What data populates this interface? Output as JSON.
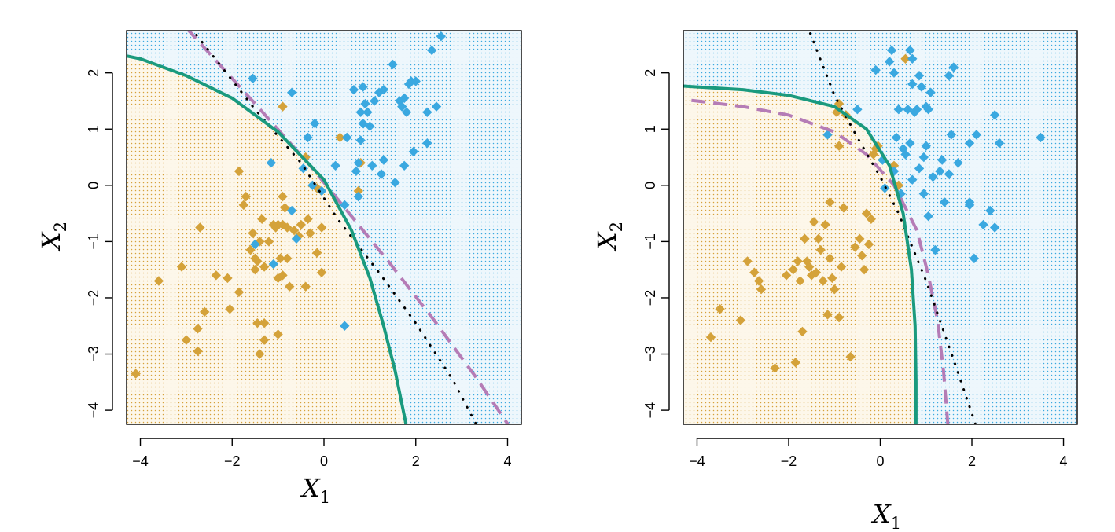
{
  "chart_data": [
    {
      "type": "scatter",
      "panel": "left",
      "xlabel_main": "X",
      "xlabel_sub": "1",
      "ylabel_main": "X",
      "ylabel_sub": "2",
      "xlim": [
        -4.3,
        4.3
      ],
      "ylim": [
        -4.25,
        2.75
      ],
      "x_ticks": [
        "−4",
        "−2",
        "0",
        "2",
        "4"
      ],
      "y_ticks": [
        "−4",
        "−3",
        "−2",
        "−1",
        "0",
        "1",
        "2"
      ],
      "x_tick_values": [
        -4,
        -2,
        0,
        2,
        4
      ],
      "y_tick_values": [
        -4,
        -3,
        -2,
        -1,
        0,
        1,
        2
      ],
      "background_regions": {
        "class1_color": "#e0a81e",
        "class2_color": "#2a9fe0",
        "style": "dotted grid"
      },
      "series": [
        {
          "marker": "diamond",
          "color": "#d4a23a",
          "points": [
            [
              -4.1,
              -3.35
            ],
            [
              -3.6,
              -1.7
            ],
            [
              -3.1,
              -1.45
            ],
            [
              -3.0,
              -2.75
            ],
            [
              -2.75,
              -2.95
            ],
            [
              -2.75,
              -2.55
            ],
            [
              -2.7,
              -0.75
            ],
            [
              -2.6,
              -2.25
            ],
            [
              -2.35,
              -1.6
            ],
            [
              -2.1,
              -1.65
            ],
            [
              -2.05,
              -2.2
            ],
            [
              -1.85,
              -1.9
            ],
            [
              -1.85,
              0.25
            ],
            [
              -1.75,
              -0.35
            ],
            [
              -1.7,
              -0.2
            ],
            [
              -1.6,
              -1.15
            ],
            [
              -1.55,
              -0.85
            ],
            [
              -1.5,
              -1.3
            ],
            [
              -1.5,
              -1.5
            ],
            [
              -1.45,
              -2.45
            ],
            [
              -1.45,
              -1.35
            ],
            [
              -1.4,
              -3.0
            ],
            [
              -1.4,
              -1.0
            ],
            [
              -1.35,
              -0.6
            ],
            [
              -1.3,
              -2.45
            ],
            [
              -1.3,
              -2.75
            ],
            [
              -1.3,
              -1.45
            ],
            [
              -1.2,
              -1.0
            ],
            [
              -1.1,
              -0.7
            ],
            [
              -1.05,
              -0.75
            ],
            [
              -1.0,
              -1.65
            ],
            [
              -1.0,
              -2.65
            ],
            [
              -0.95,
              -1.3
            ],
            [
              -0.9,
              -0.2
            ],
            [
              -0.9,
              -0.7
            ],
            [
              -0.9,
              -1.6
            ],
            [
              -0.85,
              -0.4
            ],
            [
              -0.8,
              -0.75
            ],
            [
              -0.8,
              -1.3
            ],
            [
              -0.65,
              -0.8
            ],
            [
              -0.55,
              -0.9
            ],
            [
              -0.5,
              -0.7
            ],
            [
              -0.4,
              -1.8
            ],
            [
              -0.35,
              -0.6
            ],
            [
              -0.3,
              -0.85
            ],
            [
              -0.15,
              -0.05
            ],
            [
              -0.15,
              -1.2
            ],
            [
              -0.05,
              -0.75
            ],
            [
              -0.05,
              -1.55
            ],
            [
              0.35,
              0.85
            ],
            [
              0.8,
              0.4
            ],
            [
              0.75,
              -0.1
            ],
            [
              -0.4,
              0.5
            ],
            [
              -0.9,
              1.4
            ],
            [
              -0.75,
              -1.8
            ],
            [
              -1.0,
              -0.7
            ]
          ]
        },
        {
          "marker": "diamond",
          "color": "#3aa8e0",
          "points": [
            [
              -1.55,
              1.9
            ],
            [
              -1.15,
              0.4
            ],
            [
              -0.7,
              1.65
            ],
            [
              -0.45,
              0.3
            ],
            [
              -0.35,
              0.85
            ],
            [
              -0.25,
              0.0
            ],
            [
              -0.2,
              1.1
            ],
            [
              -0.05,
              -0.1
            ],
            [
              0.25,
              0.35
            ],
            [
              0.45,
              -0.35
            ],
            [
              0.5,
              0.85
            ],
            [
              0.65,
              1.7
            ],
            [
              0.7,
              0.25
            ],
            [
              0.75,
              0.4
            ],
            [
              0.75,
              -0.2
            ],
            [
              0.8,
              1.3
            ],
            [
              0.8,
              0.8
            ],
            [
              0.85,
              1.75
            ],
            [
              0.85,
              1.1
            ],
            [
              0.9,
              1.45
            ],
            [
              0.95,
              1.3
            ],
            [
              1.0,
              1.05
            ],
            [
              1.05,
              0.35
            ],
            [
              1.1,
              1.5
            ],
            [
              1.2,
              1.65
            ],
            [
              1.25,
              0.2
            ],
            [
              1.3,
              1.7
            ],
            [
              1.3,
              0.45
            ],
            [
              1.5,
              2.15
            ],
            [
              1.55,
              0.05
            ],
            [
              1.65,
              1.5
            ],
            [
              1.7,
              1.4
            ],
            [
              1.75,
              1.55
            ],
            [
              1.75,
              0.35
            ],
            [
              1.8,
              1.3
            ],
            [
              1.85,
              1.8
            ],
            [
              1.9,
              1.85
            ],
            [
              1.95,
              0.6
            ],
            [
              2.0,
              1.85
            ],
            [
              2.25,
              1.3
            ],
            [
              2.25,
              0.75
            ],
            [
              2.35,
              2.4
            ],
            [
              2.45,
              1.4
            ],
            [
              2.55,
              2.65
            ],
            [
              0.45,
              -2.5
            ],
            [
              -1.1,
              -1.4
            ],
            [
              -1.5,
              -1.05
            ],
            [
              -0.6,
              -0.95
            ],
            [
              -0.7,
              -0.45
            ]
          ]
        }
      ],
      "curves": [
        {
          "style": "solid",
          "color": "#1a9a7e"
        },
        {
          "style": "dotted",
          "color": "#000000"
        },
        {
          "style": "dashed",
          "color": "#b57cb6"
        }
      ]
    },
    {
      "type": "scatter",
      "panel": "right",
      "xlabel_main": "X",
      "xlabel_sub": "1",
      "ylabel_main": "X",
      "ylabel_sub": "2",
      "xlim": [
        -4.3,
        4.3
      ],
      "ylim": [
        -4.25,
        2.75
      ],
      "x_ticks": [
        "−4",
        "−2",
        "0",
        "2",
        "4"
      ],
      "y_ticks": [
        "−4",
        "−3",
        "−2",
        "−1",
        "0",
        "1",
        "2"
      ],
      "x_tick_values": [
        -4,
        -2,
        0,
        2,
        4
      ],
      "y_tick_values": [
        -4,
        -3,
        -2,
        -1,
        0,
        1,
        2
      ],
      "background_regions": {
        "class1_color": "#e0a81e",
        "class2_color": "#2a9fe0",
        "style": "dotted grid"
      },
      "series": [
        {
          "marker": "diamond",
          "color": "#d4a23a",
          "points": [
            [
              -3.7,
              -2.7
            ],
            [
              -3.5,
              -2.2
            ],
            [
              -3.05,
              -2.4
            ],
            [
              -2.9,
              -1.35
            ],
            [
              -2.75,
              -1.55
            ],
            [
              -2.65,
              -1.7
            ],
            [
              -2.6,
              -1.85
            ],
            [
              -2.3,
              -3.25
            ],
            [
              -2.05,
              -1.6
            ],
            [
              -1.9,
              -1.5
            ],
            [
              -1.85,
              -3.15
            ],
            [
              -1.8,
              -1.35
            ],
            [
              -1.75,
              -1.7
            ],
            [
              -1.7,
              -2.6
            ],
            [
              -1.65,
              -0.95
            ],
            [
              -1.6,
              -1.35
            ],
            [
              -1.55,
              -1.45
            ],
            [
              -1.5,
              -1.6
            ],
            [
              -1.45,
              -0.65
            ],
            [
              -1.4,
              -1.55
            ],
            [
              -1.35,
              -0.95
            ],
            [
              -1.3,
              -1.15
            ],
            [
              -1.25,
              -1.7
            ],
            [
              -1.2,
              -0.7
            ],
            [
              -1.15,
              -2.3
            ],
            [
              -1.1,
              -1.3
            ],
            [
              -1.1,
              -0.3
            ],
            [
              -1.05,
              -1.65
            ],
            [
              -1.0,
              -1.85
            ],
            [
              -0.9,
              -2.35
            ],
            [
              -0.85,
              -1.45
            ],
            [
              -0.8,
              -0.4
            ],
            [
              -0.75,
              1.25
            ],
            [
              -0.65,
              -3.05
            ],
            [
              -0.55,
              -1.1
            ],
            [
              -0.45,
              -0.95
            ],
            [
              -0.4,
              -1.25
            ],
            [
              -0.35,
              -1.5
            ],
            [
              -0.3,
              -0.5
            ],
            [
              -0.25,
              -1.05
            ],
            [
              -0.2,
              -0.6
            ],
            [
              -0.15,
              0.55
            ],
            [
              -0.1,
              0.65
            ],
            [
              -0.05,
              0.7
            ],
            [
              0.3,
              0.35
            ],
            [
              0.4,
              0.0
            ],
            [
              0.55,
              2.25
            ],
            [
              -0.9,
              1.45
            ],
            [
              -0.9,
              0.7
            ],
            [
              -1.65,
              -0.95
            ],
            [
              -0.95,
              1.3
            ]
          ]
        },
        {
          "marker": "diamond",
          "color": "#3aa8e0",
          "points": [
            [
              -1.15,
              0.9
            ],
            [
              -0.5,
              1.35
            ],
            [
              -0.1,
              2.05
            ],
            [
              0.05,
              0.45
            ],
            [
              0.1,
              -0.05
            ],
            [
              0.2,
              2.2
            ],
            [
              0.25,
              2.4
            ],
            [
              0.3,
              2.0
            ],
            [
              0.35,
              0.85
            ],
            [
              0.4,
              1.35
            ],
            [
              0.45,
              -0.15
            ],
            [
              0.5,
              0.65
            ],
            [
              0.55,
              0.55
            ],
            [
              0.6,
              1.35
            ],
            [
              0.65,
              2.4
            ],
            [
              0.65,
              0.75
            ],
            [
              0.7,
              1.8
            ],
            [
              0.7,
              2.25
            ],
            [
              0.7,
              0.1
            ],
            [
              0.75,
              1.3
            ],
            [
              0.8,
              1.35
            ],
            [
              0.85,
              0.3
            ],
            [
              0.85,
              1.95
            ],
            [
              0.9,
              1.75
            ],
            [
              0.95,
              -0.15
            ],
            [
              0.95,
              0.5
            ],
            [
              1.0,
              1.4
            ],
            [
              1.0,
              0.7
            ],
            [
              1.05,
              1.35
            ],
            [
              1.05,
              -0.55
            ],
            [
              1.1,
              1.65
            ],
            [
              1.15,
              0.15
            ],
            [
              1.2,
              -1.15
            ],
            [
              1.3,
              0.25
            ],
            [
              1.35,
              0.45
            ],
            [
              1.4,
              -0.3
            ],
            [
              1.5,
              0.2
            ],
            [
              1.5,
              1.95
            ],
            [
              1.55,
              0.9
            ],
            [
              1.6,
              2.1
            ],
            [
              1.7,
              0.4
            ],
            [
              1.95,
              0.75
            ],
            [
              1.95,
              -0.35
            ],
            [
              1.95,
              -0.3
            ],
            [
              2.05,
              -1.3
            ],
            [
              2.1,
              0.9
            ],
            [
              2.25,
              -0.7
            ],
            [
              2.4,
              -0.45
            ],
            [
              2.5,
              -0.75
            ],
            [
              2.5,
              1.25
            ],
            [
              2.6,
              0.75
            ],
            [
              3.5,
              0.85
            ],
            [
              0.3,
              0.25
            ]
          ]
        }
      ],
      "curves": [
        {
          "style": "solid",
          "color": "#1a9a7e"
        },
        {
          "style": "dotted",
          "color": "#000000"
        },
        {
          "style": "dashed",
          "color": "#b57cb6"
        }
      ]
    }
  ]
}
